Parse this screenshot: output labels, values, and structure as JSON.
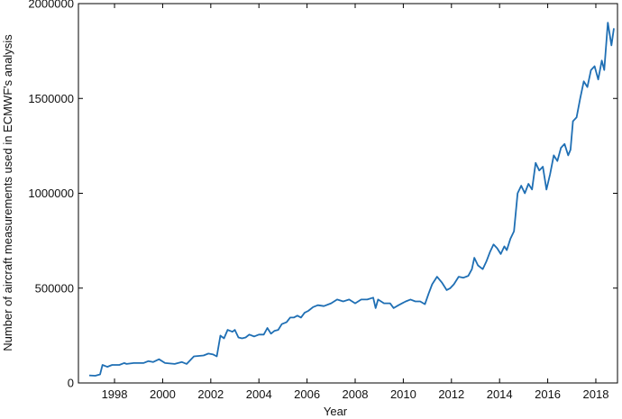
{
  "chart_data": {
    "type": "line",
    "title": "",
    "xlabel": "Year",
    "ylabel": "Number of aircraft measurements used in ECMWF's analysis",
    "xlim": [
      1996.5,
      2018.9
    ],
    "ylim": [
      0,
      2000000
    ],
    "x_ticks": [
      1998,
      2000,
      2002,
      2004,
      2006,
      2008,
      2010,
      2012,
      2014,
      2016,
      2018
    ],
    "x_tick_labels": [
      "1998",
      "2000",
      "2002",
      "2004",
      "2006",
      "2008",
      "2010",
      "2012",
      "2014",
      "2016",
      "2018"
    ],
    "y_ticks": [
      0,
      500000,
      1000000,
      1500000,
      2000000
    ],
    "y_tick_labels": [
      "0",
      "500000",
      "1000000",
      "1500000",
      "2000000"
    ],
    "grid": false,
    "line_color": "#1f6fb4",
    "series": [
      {
        "x": [
          1996.95,
          1997.2,
          1997.4,
          1997.5,
          1997.7,
          1997.9,
          1998.2,
          1998.4,
          1998.5,
          1998.8,
          1999.2,
          1999.4,
          1999.6,
          1999.85,
          2000.1,
          2000.5,
          2000.8,
          2001.0,
          2001.3,
          2001.7,
          2001.9,
          2002.1,
          2002.25,
          2002.4,
          2002.55,
          2002.7,
          2002.9,
          2003.0,
          2003.15,
          2003.3,
          2003.45,
          2003.6,
          2003.8,
          2004.0,
          2004.2,
          2004.35,
          2004.5,
          2004.65,
          2004.8,
          2004.95,
          2005.15,
          2005.3,
          2005.45,
          2005.6,
          2005.75,
          2005.9,
          2006.05,
          2006.25,
          2006.45,
          2006.7,
          2007.0,
          2007.25,
          2007.5,
          2007.75,
          2008.0,
          2008.25,
          2008.5,
          2008.75,
          2008.85,
          2008.95,
          2009.2,
          2009.45,
          2009.6,
          2009.8,
          2009.95,
          2010.1,
          2010.3,
          2010.5,
          2010.7,
          2010.9,
          2011.05,
          2011.2,
          2011.4,
          2011.6,
          2011.8,
          2011.95,
          2012.1,
          2012.3,
          2012.5,
          2012.7,
          2012.85,
          2012.95,
          2013.1,
          2013.3,
          2013.45,
          2013.6,
          2013.75,
          2013.9,
          2014.05,
          2014.2,
          2014.3,
          2014.45,
          2014.6,
          2014.75,
          2014.9,
          2015.05,
          2015.2,
          2015.35,
          2015.5,
          2015.65,
          2015.8,
          2015.95,
          2016.1,
          2016.25,
          2016.4,
          2016.55,
          2016.7,
          2016.85,
          2016.95,
          2017.05,
          2017.2,
          2017.35,
          2017.5,
          2017.65,
          2017.8,
          2017.95,
          2018.1,
          2018.25,
          2018.35,
          2018.5,
          2018.65,
          2018.75
        ],
        "y": [
          40000,
          38000,
          45000,
          95000,
          85000,
          95000,
          95000,
          105000,
          100000,
          105000,
          105000,
          115000,
          110000,
          125000,
          105000,
          100000,
          110000,
          100000,
          140000,
          145000,
          155000,
          150000,
          140000,
          250000,
          235000,
          280000,
          270000,
          280000,
          240000,
          235000,
          240000,
          255000,
          245000,
          255000,
          255000,
          290000,
          260000,
          275000,
          280000,
          310000,
          320000,
          345000,
          345000,
          355000,
          345000,
          370000,
          380000,
          400000,
          410000,
          405000,
          420000,
          440000,
          430000,
          440000,
          420000,
          440000,
          440000,
          450000,
          395000,
          440000,
          420000,
          420000,
          395000,
          410000,
          420000,
          430000,
          440000,
          430000,
          430000,
          415000,
          470000,
          520000,
          560000,
          530000,
          490000,
          500000,
          520000,
          560000,
          555000,
          565000,
          600000,
          660000,
          620000,
          600000,
          640000,
          690000,
          730000,
          710000,
          680000,
          720000,
          700000,
          760000,
          800000,
          1000000,
          1040000,
          1000000,
          1050000,
          1020000,
          1160000,
          1120000,
          1140000,
          1020000,
          1100000,
          1200000,
          1170000,
          1240000,
          1260000,
          1200000,
          1230000,
          1380000,
          1400000,
          1500000,
          1590000,
          1560000,
          1650000,
          1670000,
          1600000,
          1700000,
          1650000,
          1900000,
          1780000,
          1870000
        ]
      }
    ]
  }
}
